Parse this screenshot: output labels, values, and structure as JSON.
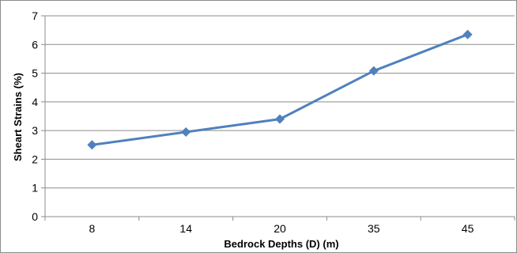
{
  "chart_data": {
    "type": "line",
    "title": "",
    "xlabel": "Bedrock Depths (D) (m)",
    "ylabel": "Sheart Strains (%)",
    "categories": [
      "8",
      "14",
      "20",
      "35",
      "45"
    ],
    "series": [
      {
        "values": [
          2.5,
          2.95,
          3.4,
          5.08,
          6.35
        ]
      }
    ],
    "ylim": [
      0,
      7
    ],
    "yticks": [
      "0",
      "1",
      "2",
      "3",
      "4",
      "5",
      "6",
      "7"
    ],
    "grid": true,
    "legend": "none",
    "colors": {
      "line": "#4f81bd",
      "marker": "#4f81bd",
      "grid": "#8c8c8c",
      "axis": "#8c8c8c"
    },
    "marker": "diamond"
  }
}
